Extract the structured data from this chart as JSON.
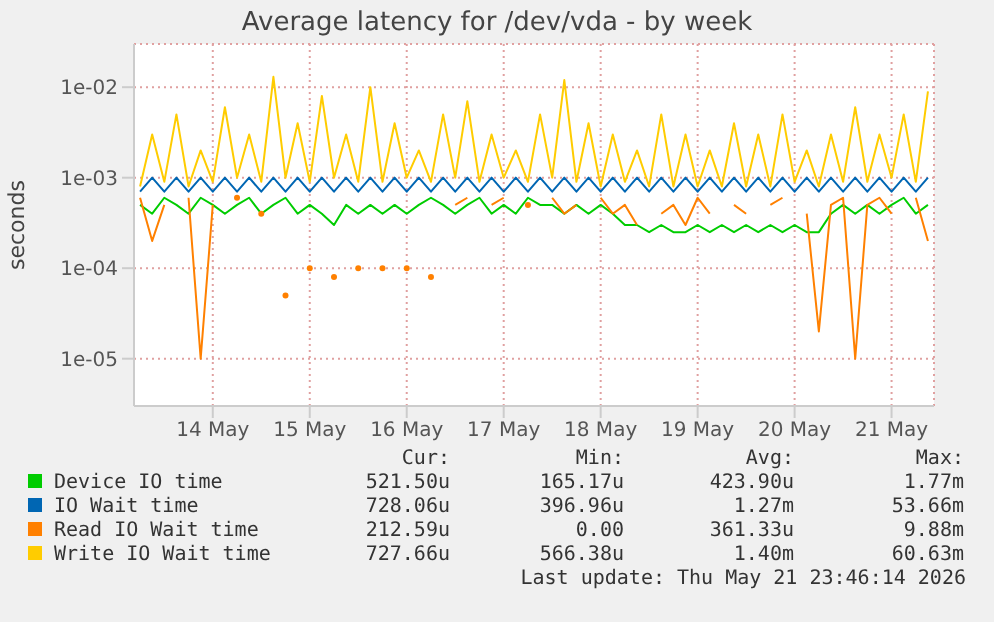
{
  "chart_data": {
    "type": "line",
    "title": "Average latency for /dev/vda - by week",
    "ylabel": "seconds",
    "x": [
      "2026-05-13T18:00",
      "2026-05-13T21:00",
      "2026-05-14T00:00",
      "2026-05-14T03:00",
      "2026-05-14T06:00",
      "2026-05-14T09:00",
      "2026-05-14T12:00",
      "2026-05-14T15:00",
      "2026-05-14T18:00",
      "2026-05-14T21:00",
      "2026-05-15T00:00",
      "2026-05-15T03:00",
      "2026-05-15T06:00",
      "2026-05-15T09:00",
      "2026-05-15T12:00",
      "2026-05-15T15:00",
      "2026-05-15T18:00",
      "2026-05-15T21:00",
      "2026-05-16T00:00",
      "2026-05-16T03:00",
      "2026-05-16T06:00",
      "2026-05-16T09:00",
      "2026-05-16T12:00",
      "2026-05-16T15:00",
      "2026-05-16T18:00",
      "2026-05-16T21:00",
      "2026-05-17T00:00",
      "2026-05-17T03:00",
      "2026-05-17T06:00",
      "2026-05-17T09:00",
      "2026-05-17T12:00",
      "2026-05-17T15:00",
      "2026-05-17T18:00",
      "2026-05-17T21:00",
      "2026-05-18T00:00",
      "2026-05-18T03:00",
      "2026-05-18T06:00",
      "2026-05-18T09:00",
      "2026-05-18T12:00",
      "2026-05-18T15:00",
      "2026-05-18T18:00",
      "2026-05-18T21:00",
      "2026-05-19T00:00",
      "2026-05-19T03:00",
      "2026-05-19T06:00",
      "2026-05-19T09:00",
      "2026-05-19T12:00",
      "2026-05-19T15:00",
      "2026-05-19T18:00",
      "2026-05-19T21:00",
      "2026-05-20T00:00",
      "2026-05-20T03:00",
      "2026-05-20T06:00",
      "2026-05-20T09:00",
      "2026-05-20T12:00",
      "2026-05-20T15:00",
      "2026-05-20T18:00",
      "2026-05-20T21:00",
      "2026-05-21T00:00",
      "2026-05-21T03:00",
      "2026-05-21T06:00",
      "2026-05-21T09:00",
      "2026-05-21T12:00",
      "2026-05-21T15:00",
      "2026-05-21T18:00",
      "2026-05-21T21:00"
    ],
    "xlim": [
      "2026-05-13T16:30",
      "2026-05-21T22:30"
    ],
    "xticks": [
      {
        "value": "2026-05-14T12:00",
        "label": "14 May"
      },
      {
        "value": "2026-05-15T12:00",
        "label": "15 May"
      },
      {
        "value": "2026-05-16T12:00",
        "label": "16 May"
      },
      {
        "value": "2026-05-17T12:00",
        "label": "17 May"
      },
      {
        "value": "2026-05-18T12:00",
        "label": "18 May"
      },
      {
        "value": "2026-05-19T12:00",
        "label": "19 May"
      },
      {
        "value": "2026-05-20T12:00",
        "label": "20 May"
      },
      {
        "value": "2026-05-21T12:00",
        "label": "21 May"
      }
    ],
    "log": true,
    "ylim": [
      3e-06,
      0.03
    ],
    "yticks": [
      {
        "value": 1e-05,
        "label": "1e-05"
      },
      {
        "value": 0.0001,
        "label": "1e-04"
      },
      {
        "value": 0.001,
        "label": "1e-03"
      },
      {
        "value": 0.01,
        "label": "1e-02"
      }
    ],
    "grid": true,
    "legend": "bottom",
    "marker": "none",
    "series": [
      {
        "name": "Device IO time",
        "color": "#00cc00",
        "values": [
          0.0005,
          0.0004,
          0.0006,
          0.0005,
          0.0004,
          0.0006,
          0.0005,
          0.0004,
          0.0005,
          0.0006,
          0.0004,
          0.0005,
          0.0006,
          0.0004,
          0.0005,
          0.0004,
          0.0003,
          0.0005,
          0.0004,
          0.0005,
          0.0004,
          0.0005,
          0.0004,
          0.0005,
          0.0006,
          0.0005,
          0.0004,
          0.0005,
          0.0006,
          0.0004,
          0.0005,
          0.0004,
          0.0006,
          0.0005,
          0.0005,
          0.0004,
          0.0005,
          0.0004,
          0.0005,
          0.0004,
          0.0003,
          0.0003,
          0.00025,
          0.0003,
          0.00025,
          0.00025,
          0.0003,
          0.00025,
          0.0003,
          0.00025,
          0.0003,
          0.00025,
          0.0003,
          0.00025,
          0.0003,
          0.00025,
          0.00025,
          0.0004,
          0.0005,
          0.0004,
          0.0005,
          0.0004,
          0.0005,
          0.0006,
          0.0004,
          0.0005
        ]
      },
      {
        "name": "IO Wait time",
        "color": "#0066b3",
        "values": [
          0.0007,
          0.001,
          0.0007,
          0.001,
          0.0007,
          0.001,
          0.0007,
          0.001,
          0.0007,
          0.001,
          0.0007,
          0.001,
          0.0007,
          0.001,
          0.0007,
          0.001,
          0.0007,
          0.001,
          0.0007,
          0.001,
          0.0007,
          0.001,
          0.0007,
          0.001,
          0.0007,
          0.001,
          0.0007,
          0.001,
          0.0007,
          0.001,
          0.0007,
          0.001,
          0.0007,
          0.001,
          0.0007,
          0.001,
          0.0007,
          0.001,
          0.0007,
          0.001,
          0.0007,
          0.001,
          0.0007,
          0.001,
          0.0007,
          0.001,
          0.0007,
          0.001,
          0.0007,
          0.001,
          0.0007,
          0.001,
          0.0007,
          0.001,
          0.0007,
          0.001,
          0.0007,
          0.001,
          0.0007,
          0.001,
          0.0007,
          0.001,
          0.0007,
          0.001,
          0.0007,
          0.001
        ]
      },
      {
        "name": "Read IO Wait time",
        "color": "#ff8000",
        "values": [
          0.0006,
          0.0002,
          0.0005,
          null,
          0.0006,
          1e-05,
          0.0005,
          null,
          0.0006,
          null,
          0.0004,
          null,
          5e-05,
          null,
          0.0001,
          null,
          8e-05,
          null,
          0.0001,
          null,
          0.0001,
          null,
          0.0001,
          null,
          8e-05,
          null,
          0.0005,
          0.0006,
          null,
          0.0005,
          0.0006,
          null,
          0.0005,
          null,
          0.0006,
          0.0004,
          0.0005,
          null,
          0.0006,
          0.0004,
          0.0005,
          0.0003,
          null,
          0.0004,
          0.0005,
          0.0003,
          0.0006,
          0.0004,
          null,
          0.0005,
          0.0004,
          null,
          0.0005,
          0.0006,
          null,
          0.0004,
          2e-05,
          0.0005,
          0.0006,
          1e-05,
          0.0005,
          0.0006,
          0.0004,
          null,
          0.0006,
          0.0002
        ]
      },
      {
        "name": "Write IO Wait time",
        "color": "#ffcc00",
        "values": [
          0.0008,
          0.003,
          0.0009,
          0.005,
          0.0008,
          0.002,
          0.0009,
          0.006,
          0.001,
          0.003,
          0.0009,
          0.013,
          0.001,
          0.004,
          0.0009,
          0.008,
          0.001,
          0.003,
          0.0009,
          0.01,
          0.0009,
          0.004,
          0.001,
          0.002,
          0.0009,
          0.005,
          0.001,
          0.007,
          0.0009,
          0.003,
          0.001,
          0.002,
          0.0009,
          0.005,
          0.001,
          0.012,
          0.0009,
          0.004,
          0.0008,
          0.003,
          0.0009,
          0.002,
          0.0008,
          0.005,
          0.0008,
          0.003,
          0.0008,
          0.002,
          0.0008,
          0.004,
          0.0008,
          0.003,
          0.0008,
          0.005,
          0.0009,
          0.002,
          0.0008,
          0.003,
          0.0009,
          0.006,
          0.0009,
          0.003,
          0.001,
          0.005,
          0.0009,
          0.009
        ]
      }
    ],
    "annotations": [
      "Cur:",
      "Min:",
      "Avg:",
      "Max:",
      "521.50u",
      "165.17u",
      "423.90u",
      "1.77m",
      "728.06u",
      "396.96u",
      "1.27m",
      "53.66m",
      "212.59u",
      "0.00",
      "361.33u",
      "9.88m",
      "727.66u",
      "566.38u",
      "1.40m",
      "60.63m",
      "Last update: Thu May 21 23:46:14 2026"
    ]
  }
}
